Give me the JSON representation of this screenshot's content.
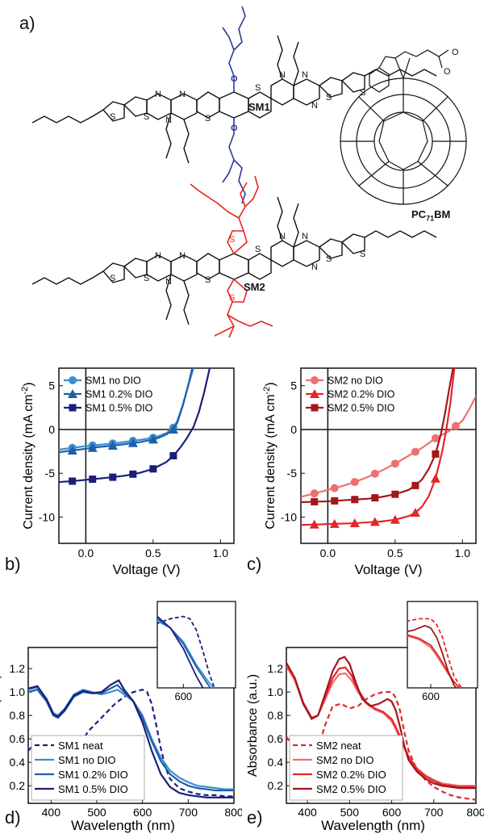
{
  "panel_labels": {
    "a": "a)",
    "b": "b)",
    "c": "c)",
    "d": "d)",
    "e": "e)"
  },
  "molecules": {
    "sm1": "SM1",
    "sm2": "SM2",
    "pcbm_main": "PC",
    "pcbm_sub": "71",
    "pcbm_suffix": "BM"
  },
  "colors": {
    "sm1_chain": "#2a3b9c",
    "sm2_chain": "#e8251f",
    "sm1_no": "#3a8fd0",
    "sm1_02": "#1f5fa8",
    "sm1_05": "#1b1f7a",
    "sm2_no": "#ee7070",
    "sm2_02": "#e3262c",
    "sm2_05": "#a3161b"
  },
  "chart_data": [
    {
      "id": "b",
      "type": "line",
      "xlabel": "Voltage (V)",
      "ylabel": "Current density (mA cm",
      "ylabel_sup": "-2",
      "ylabel_close": ")",
      "xlim": [
        -0.2,
        1.1
      ],
      "ylim": [
        -13,
        7
      ],
      "xticks": [
        0.0,
        0.5,
        1.0
      ],
      "xtick_labels": [
        "0.0",
        "0.5",
        "1.0"
      ],
      "yticks": [
        5,
        0,
        -5,
        -10
      ],
      "ytick_labels": [
        "5",
        "0",
        "-5",
        "-10"
      ],
      "legend_position": "top-left",
      "series": [
        {
          "name": "SM1 no DIO",
          "marker": "circle",
          "color_key": "sm1_no",
          "x": [
            -0.2,
            -0.1,
            0.0,
            0.1,
            0.2,
            0.3,
            0.4,
            0.5,
            0.55,
            0.6,
            0.65,
            0.68,
            0.72,
            0.76,
            0.8
          ],
          "y": [
            -2.3,
            -2.1,
            -1.9,
            -1.75,
            -1.6,
            -1.4,
            -1.2,
            -0.95,
            -0.7,
            -0.4,
            0.2,
            1.0,
            2.8,
            5.0,
            7.0
          ],
          "markers_x": [
            -0.1,
            0.05,
            0.2,
            0.35,
            0.5,
            0.65
          ]
        },
        {
          "name": "SM1 0.2% DIO",
          "marker": "triangle",
          "color_key": "sm1_02",
          "x": [
            -0.2,
            -0.1,
            0.0,
            0.1,
            0.2,
            0.3,
            0.4,
            0.5,
            0.55,
            0.6,
            0.65,
            0.68,
            0.72,
            0.76,
            0.79
          ],
          "y": [
            -2.6,
            -2.4,
            -2.2,
            -2.0,
            -1.85,
            -1.65,
            -1.45,
            -1.15,
            -0.9,
            -0.55,
            0.0,
            0.8,
            2.7,
            5.0,
            7.0
          ],
          "markers_x": [
            -0.1,
            0.05,
            0.2,
            0.35,
            0.5,
            0.65
          ]
        },
        {
          "name": "SM1 0.5% DIO",
          "marker": "square",
          "color_key": "sm1_05",
          "x": [
            -0.2,
            -0.1,
            0.0,
            0.1,
            0.2,
            0.3,
            0.4,
            0.5,
            0.6,
            0.65,
            0.7,
            0.75,
            0.8,
            0.84,
            0.88,
            0.92
          ],
          "y": [
            -6.0,
            -5.9,
            -5.75,
            -5.6,
            -5.45,
            -5.25,
            -4.95,
            -4.5,
            -3.7,
            -3.0,
            -2.1,
            -1.0,
            0.3,
            2.0,
            4.3,
            7.0
          ],
          "markers_x": [
            -0.1,
            0.05,
            0.2,
            0.35,
            0.5,
            0.65
          ]
        }
      ]
    },
    {
      "id": "c",
      "type": "line",
      "xlabel": "Voltage (V)",
      "ylabel": "Current density (mA cm",
      "ylabel_sup": "-2",
      "ylabel_close": ")",
      "xlim": [
        -0.2,
        1.1
      ],
      "ylim": [
        -13,
        7
      ],
      "xticks": [
        0.0,
        0.5,
        1.0
      ],
      "xtick_labels": [
        "0.0",
        "0.5",
        "1.0"
      ],
      "yticks": [
        5,
        0,
        -5,
        -10
      ],
      "ytick_labels": [
        "5",
        "0",
        "-5",
        "-10"
      ],
      "legend_position": "top-left",
      "series": [
        {
          "name": "SM2 no DIO",
          "marker": "circle",
          "color_key": "sm2_no",
          "x": [
            -0.2,
            -0.1,
            0.0,
            0.1,
            0.2,
            0.3,
            0.4,
            0.5,
            0.6,
            0.7,
            0.8,
            0.9,
            1.0,
            1.05,
            1.1
          ],
          "y": [
            -7.7,
            -7.3,
            -6.9,
            -6.5,
            -6.0,
            -5.4,
            -4.7,
            -3.9,
            -3.0,
            -2.1,
            -1.0,
            -0.2,
            1.0,
            2.3,
            3.8
          ],
          "markers_x": [
            -0.1,
            0.05,
            0.2,
            0.35,
            0.5,
            0.65,
            0.8,
            0.95
          ]
        },
        {
          "name": "SM2 0.2% DIO",
          "marker": "triangle",
          "color_key": "sm2_02",
          "x": [
            -0.2,
            -0.1,
            0.0,
            0.1,
            0.2,
            0.3,
            0.4,
            0.5,
            0.6,
            0.65,
            0.7,
            0.75,
            0.8,
            0.85,
            0.88,
            0.91,
            0.94
          ],
          "y": [
            -10.9,
            -10.85,
            -10.8,
            -10.75,
            -10.7,
            -10.6,
            -10.5,
            -10.3,
            -9.9,
            -9.5,
            -8.8,
            -7.6,
            -5.6,
            -2.5,
            0.0,
            3.0,
            7.0
          ],
          "markers_x": [
            -0.1,
            0.05,
            0.2,
            0.35,
            0.5,
            0.65,
            0.8
          ]
        },
        {
          "name": "SM2 0.5% DIO",
          "marker": "square",
          "color_key": "sm2_05",
          "x": [
            -0.2,
            -0.1,
            0.0,
            0.1,
            0.2,
            0.3,
            0.4,
            0.5,
            0.6,
            0.65,
            0.7,
            0.75,
            0.8,
            0.84,
            0.87,
            0.9,
            0.93
          ],
          "y": [
            -8.3,
            -8.25,
            -8.2,
            -8.1,
            -8.0,
            -7.9,
            -7.7,
            -7.4,
            -6.9,
            -6.4,
            -5.7,
            -4.5,
            -2.8,
            -0.5,
            1.8,
            4.5,
            7.0
          ],
          "markers_x": [
            -0.1,
            0.05,
            0.2,
            0.35,
            0.5,
            0.65,
            0.8
          ]
        }
      ]
    },
    {
      "id": "d",
      "type": "line",
      "xlabel": "Wavelength (nm)",
      "ylabel": "Absorbance (a.u.)",
      "xlim": [
        350,
        800
      ],
      "ylim": [
        0.05,
        1.38
      ],
      "xticks": [
        400,
        500,
        600,
        700,
        800
      ],
      "xtick_labels": [
        "400",
        "500",
        "600",
        "700",
        "800"
      ],
      "yticks": [
        0.2,
        0.4,
        0.6,
        0.8,
        1.0,
        1.2
      ],
      "ytick_labels": [
        "0.2",
        "0.4",
        "0.6",
        "0.8",
        "1.0",
        "1.2"
      ],
      "legend_position": "bottom-left",
      "series": [
        {
          "name": "SM1 neat",
          "dashed": true,
          "color_key": "sm1_05",
          "x": [
            350,
            360,
            370,
            380,
            390,
            400,
            420,
            440,
            460,
            480,
            500,
            520,
            540,
            560,
            580,
            600,
            610,
            620,
            630,
            640,
            650,
            660,
            680,
            700,
            720,
            740,
            760,
            780,
            800
          ],
          "y": [
            0.5,
            0.54,
            0.52,
            0.46,
            0.38,
            0.32,
            0.28,
            0.34,
            0.52,
            0.66,
            0.74,
            0.82,
            0.9,
            0.96,
            1.0,
            1.02,
            1.0,
            0.9,
            0.72,
            0.52,
            0.36,
            0.26,
            0.18,
            0.15,
            0.13,
            0.12,
            0.12,
            0.11,
            0.11
          ]
        },
        {
          "name": "SM1 no DIO",
          "color_key": "sm1_no",
          "x": [
            350,
            370,
            390,
            405,
            415,
            430,
            450,
            470,
            490,
            510,
            530,
            545,
            560,
            580,
            600,
            620,
            640,
            660,
            680,
            700,
            720,
            740,
            760,
            780,
            800
          ],
          "y": [
            1.02,
            1.04,
            0.94,
            0.82,
            0.8,
            0.86,
            0.98,
            1.02,
            1.0,
            0.98,
            1.0,
            1.02,
            0.98,
            0.92,
            0.8,
            0.6,
            0.44,
            0.33,
            0.27,
            0.23,
            0.2,
            0.19,
            0.18,
            0.17,
            0.17
          ]
        },
        {
          "name": "SM1 0.2% DIO",
          "color_key": "sm1_02",
          "x": [
            350,
            370,
            390,
            405,
            415,
            430,
            450,
            470,
            490,
            510,
            530,
            545,
            560,
            580,
            600,
            620,
            640,
            660,
            680,
            700,
            720,
            740,
            760,
            780,
            800
          ],
          "y": [
            1.0,
            1.02,
            0.92,
            0.8,
            0.78,
            0.84,
            0.96,
            1.0,
            0.99,
            0.99,
            1.03,
            1.06,
            1.0,
            0.92,
            0.78,
            0.58,
            0.41,
            0.3,
            0.24,
            0.2,
            0.18,
            0.17,
            0.16,
            0.16,
            0.16
          ]
        },
        {
          "name": "SM1 0.5% DIO",
          "color_key": "sm1_05",
          "x": [
            350,
            370,
            390,
            405,
            415,
            430,
            450,
            470,
            490,
            510,
            530,
            548,
            560,
            580,
            600,
            620,
            640,
            660,
            680,
            700,
            720,
            740,
            760,
            780,
            800
          ],
          "y": [
            1.03,
            1.05,
            0.94,
            0.81,
            0.79,
            0.85,
            0.97,
            1.01,
            0.99,
            1.0,
            1.06,
            1.1,
            1.02,
            0.92,
            0.74,
            0.5,
            0.3,
            0.19,
            0.14,
            0.12,
            0.11,
            0.1,
            0.1,
            0.1,
            0.1
          ]
        }
      ],
      "inset": {
        "xlim": [
          560,
          680
        ],
        "ylim": [
          0.4,
          1.15
        ],
        "xticks": [
          600
        ],
        "xtick_labels": [
          "600"
        ]
      }
    },
    {
      "id": "e",
      "type": "line",
      "xlabel": "Wavelength (nm)",
      "ylabel": "Absorbance (a.u.)",
      "xlim": [
        350,
        800
      ],
      "ylim": [
        0.05,
        1.38
      ],
      "xticks": [
        400,
        500,
        600,
        700,
        800
      ],
      "xtick_labels": [
        "400",
        "500",
        "600",
        "700",
        "800"
      ],
      "yticks": [
        0.2,
        0.4,
        0.6,
        0.8,
        1.0,
        1.2
      ],
      "ytick_labels": [
        "0.2",
        "0.4",
        "0.6",
        "0.8",
        "1.0",
        "1.2"
      ],
      "legend_position": "bottom-left",
      "series": [
        {
          "name": "SM2 neat",
          "dashed": true,
          "color_key": "sm2_02",
          "x": [
            350,
            360,
            370,
            380,
            390,
            400,
            420,
            440,
            460,
            480,
            500,
            520,
            540,
            560,
            580,
            600,
            610,
            620,
            630,
            640,
            660,
            680,
            700,
            720,
            740,
            760,
            780,
            800
          ],
          "y": [
            0.62,
            0.56,
            0.45,
            0.36,
            0.3,
            0.3,
            0.42,
            0.7,
            0.88,
            0.9,
            0.86,
            0.88,
            0.94,
            0.98,
            1.0,
            1.0,
            0.95,
            0.84,
            0.66,
            0.5,
            0.34,
            0.25,
            0.19,
            0.15,
            0.12,
            0.1,
            0.09,
            0.08
          ]
        },
        {
          "name": "SM2 no DIO",
          "color_key": "sm2_no",
          "x": [
            350,
            370,
            390,
            410,
            425,
            440,
            460,
            475,
            490,
            505,
            520,
            540,
            560,
            580,
            600,
            610,
            620,
            630,
            640,
            660,
            680,
            700,
            720,
            740,
            760,
            780,
            800
          ],
          "y": [
            1.22,
            1.1,
            0.9,
            0.78,
            0.8,
            0.92,
            1.08,
            1.15,
            1.16,
            1.1,
            1.0,
            0.9,
            0.85,
            0.82,
            0.75,
            0.68,
            0.6,
            0.52,
            0.45,
            0.35,
            0.29,
            0.25,
            0.22,
            0.21,
            0.2,
            0.2,
            0.2
          ]
        },
        {
          "name": "SM2 0.2% DIO",
          "color_key": "sm2_02",
          "x": [
            350,
            370,
            390,
            410,
            425,
            440,
            460,
            475,
            490,
            505,
            520,
            540,
            560,
            580,
            600,
            610,
            620,
            630,
            640,
            660,
            680,
            700,
            720,
            740,
            760,
            780,
            800
          ],
          "y": [
            1.24,
            1.12,
            0.91,
            0.78,
            0.8,
            0.94,
            1.12,
            1.2,
            1.21,
            1.14,
            1.02,
            0.91,
            0.86,
            0.83,
            0.77,
            0.7,
            0.62,
            0.53,
            0.45,
            0.34,
            0.28,
            0.24,
            0.21,
            0.2,
            0.19,
            0.19,
            0.19
          ]
        },
        {
          "name": "SM2 0.5% DIO",
          "color_key": "sm2_05",
          "x": [
            350,
            370,
            390,
            410,
            425,
            440,
            460,
            475,
            488,
            500,
            515,
            530,
            550,
            570,
            590,
            600,
            610,
            620,
            630,
            640,
            660,
            680,
            700,
            720,
            740,
            760,
            780,
            800
          ],
          "y": [
            1.25,
            1.12,
            0.9,
            0.77,
            0.8,
            0.96,
            1.18,
            1.28,
            1.3,
            1.24,
            1.08,
            0.94,
            0.88,
            0.9,
            0.94,
            0.92,
            0.84,
            0.7,
            0.54,
            0.42,
            0.32,
            0.26,
            0.22,
            0.2,
            0.19,
            0.18,
            0.18,
            0.18
          ]
        }
      ],
      "inset": {
        "xlim": [
          560,
          680
        ],
        "ylim": [
          0.4,
          1.15
        ],
        "xticks": [
          600
        ],
        "xtick_labels": [
          "600"
        ]
      }
    }
  ]
}
